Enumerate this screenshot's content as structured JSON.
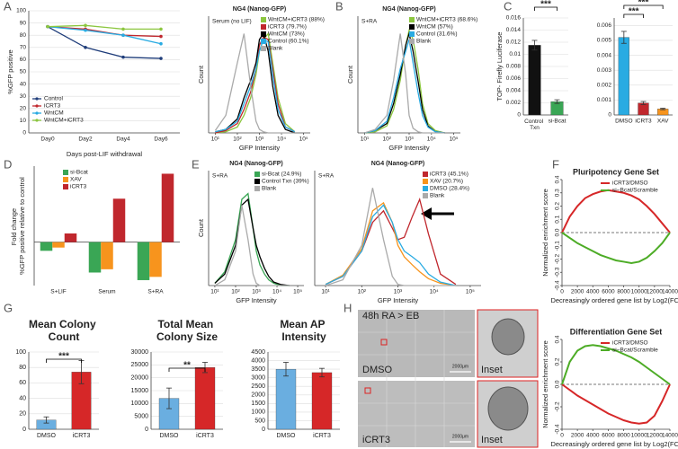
{
  "panel_labels": [
    "A",
    "B",
    "C",
    "D",
    "E",
    "F",
    "G",
    "H"
  ],
  "panel_h": {
    "header": "48h RA > EB",
    "rows": [
      {
        "label": "DMSO",
        "inset": "Inset",
        "scale": "2000μm"
      },
      {
        "label": "iCRT3",
        "inset": "Inset",
        "scale": "2000μm"
      }
    ]
  },
  "chart_data": [
    {
      "type": "line",
      "xlabel": "Days post-LIF withdrawal",
      "ylabel": "%GFP positive",
      "categories": [
        "Day0",
        "Day2",
        "Day4",
        "Day6"
      ],
      "ylim": [
        0,
        100
      ],
      "yticks": [
        0,
        10,
        20,
        30,
        40,
        50,
        60,
        70,
        80,
        90,
        100
      ],
      "markers": true,
      "series": [
        {
          "name": "Control",
          "color": "#1f3d7a",
          "values": [
            87,
            70,
            62,
            61
          ]
        },
        {
          "name": "iCRT3",
          "color": "#c0272d",
          "values": [
            87,
            85,
            80,
            79
          ]
        },
        {
          "name": "WntCM",
          "color": "#29abe2",
          "values": [
            87,
            84,
            80,
            73
          ]
        },
        {
          "name": "WntCM+iCRT3",
          "color": "#8cc63f",
          "values": [
            87,
            88,
            85,
            85
          ]
        }
      ]
    },
    {
      "type": "line",
      "title": "NG4 (Nanog-GFP)",
      "condition": "Serum (no LIF)",
      "xlabel": "GFP Intensity",
      "ylabel": "Count",
      "xscale": "log",
      "x": [
        10,
        30,
        100,
        200,
        400,
        700,
        1000,
        1500,
        2500,
        4000,
        7000,
        15000,
        40000
      ],
      "xlim": [
        5,
        200000
      ],
      "ylim": [
        0,
        100
      ],
      "xticks": [
        {
          "value": 10,
          "label": "10¹"
        },
        {
          "value": 100,
          "label": "10²"
        },
        {
          "value": 1000,
          "label": "10³"
        },
        {
          "value": 10000,
          "label": "10⁴"
        },
        {
          "value": 100000,
          "label": "10⁵"
        }
      ],
      "series": [
        {
          "name": "WntCM+iCRT3 (88%)",
          "color": "#8cc63f",
          "values": [
            0,
            1,
            5,
            15,
            30,
            50,
            70,
            80,
            85,
            60,
            30,
            8,
            1
          ]
        },
        {
          "name": "iCRT3 (79.7%)",
          "color": "#c0272d",
          "values": [
            0,
            2,
            8,
            20,
            35,
            55,
            75,
            82,
            80,
            55,
            25,
            5,
            1
          ]
        },
        {
          "name": "WntCM (73%)",
          "color": "#000000",
          "values": [
            1,
            3,
            12,
            30,
            45,
            60,
            80,
            85,
            70,
            40,
            15,
            3,
            0
          ]
        },
        {
          "name": "Control (60.1%)",
          "color": "#29abe2",
          "values": [
            1,
            3,
            10,
            25,
            40,
            55,
            70,
            80,
            78,
            50,
            20,
            5,
            1
          ]
        },
        {
          "name": "Blank",
          "color": "#aaaaaa",
          "values": [
            2,
            15,
            60,
            85,
            40,
            10,
            3,
            1,
            0,
            0,
            0,
            0,
            0
          ]
        }
      ]
    },
    {
      "type": "line",
      "title": "NG4 (Nanog-GFP)",
      "condition": "S+RA",
      "xlabel": "GFP Intensity",
      "ylabel": "Count",
      "xscale": "log",
      "x": [
        10,
        30,
        100,
        200,
        400,
        700,
        1000,
        1500,
        2500,
        4000,
        7000,
        15000,
        40000
      ],
      "xlim": [
        5,
        200000
      ],
      "ylim": [
        0,
        100
      ],
      "xticks": [
        {
          "value": 10,
          "label": "10¹"
        },
        {
          "value": 100,
          "label": "10²"
        },
        {
          "value": 1000,
          "label": "10³"
        },
        {
          "value": 10000,
          "label": "10⁴"
        },
        {
          "value": 100000,
          "label": "10⁵"
        }
      ],
      "series": [
        {
          "name": "WntCM+iCRT3 (68.6%)",
          "color": "#8cc63f",
          "values": [
            0,
            1,
            6,
            20,
            45,
            75,
            88,
            80,
            55,
            25,
            8,
            2,
            0
          ]
        },
        {
          "name": "WntCM (57%)",
          "color": "#000000",
          "values": [
            0,
            2,
            8,
            25,
            50,
            75,
            85,
            70,
            45,
            20,
            6,
            1,
            0
          ]
        },
        {
          "name": "Control (31.6%)",
          "color": "#29abe2",
          "values": [
            0,
            2,
            10,
            30,
            55,
            70,
            80,
            60,
            35,
            15,
            5,
            1,
            0
          ]
        },
        {
          "name": "Blank",
          "color": "#aaaaaa",
          "values": [
            0,
            3,
            15,
            45,
            85,
            50,
            15,
            4,
            1,
            0,
            0,
            0,
            0
          ]
        }
      ]
    },
    {
      "type": "bar",
      "ylabel": "TOP- Firefly Luciferase",
      "categories": [
        "Control Txn",
        "si-Bcat"
      ],
      "values": [
        0.0115,
        0.0022
      ],
      "errors": [
        0.0008,
        0.0003
      ],
      "colors": [
        "#111111",
        "#3aa655"
      ],
      "ylim": [
        0,
        0.016
      ],
      "yticks": [
        0,
        0.002,
        0.004,
        0.006,
        0.008,
        0.01,
        0.012,
        0.014,
        0.016
      ],
      "significance": [
        "***"
      ]
    },
    {
      "type": "bar",
      "categories": [
        "DMSO",
        "iCRT3",
        "XAV"
      ],
      "values": [
        0.0052,
        0.0008,
        0.0004
      ],
      "errors": [
        0.0004,
        0.0001,
        5e-05
      ],
      "colors": [
        "#29abe2",
        "#c0272d",
        "#f7941d"
      ],
      "ylim": [
        0,
        0.0065
      ],
      "yticks": [
        0,
        0.001,
        0.002,
        0.003,
        0.004,
        0.005,
        0.006
      ],
      "significance": [
        "***",
        "***"
      ]
    },
    {
      "type": "bar",
      "ylabel": "Fold change %GFP positive relative to control",
      "categories": [
        "S+LIF",
        "Serum",
        "S+RA"
      ],
      "ylim": [
        -40,
        70
      ],
      "series": [
        {
          "name": "si-Bcat",
          "color": "#3aa655",
          "values": [
            -8,
            -28,
            -35
          ]
        },
        {
          "name": "XAV",
          "color": "#f7941d",
          "values": [
            -5,
            -25,
            -32
          ]
        },
        {
          "name": "iCRT3",
          "color": "#c0272d",
          "values": [
            8,
            40,
            63
          ]
        }
      ]
    },
    {
      "type": "line",
      "title": "NG4 (Nanog-GFP)",
      "condition": "S+RA",
      "xlabel": "GFP Intensity",
      "ylabel": "Count",
      "xscale": "log",
      "x": [
        10,
        30,
        100,
        200,
        400,
        700,
        1000,
        1500,
        2500,
        4000,
        7000,
        15000,
        40000
      ],
      "xlim": [
        5,
        200000
      ],
      "ylim": [
        0,
        100
      ],
      "xticks": [
        {
          "value": 10,
          "label": "10¹"
        },
        {
          "value": 100,
          "label": "10²"
        },
        {
          "value": 1000,
          "label": "10³"
        },
        {
          "value": 10000,
          "label": "10⁴"
        },
        {
          "value": 100000,
          "label": "10⁵"
        }
      ],
      "series": [
        {
          "name": "si-Bcat (24.9%)",
          "color": "#3aa655",
          "values": [
            2,
            12,
            40,
            75,
            80,
            50,
            30,
            18,
            10,
            5,
            2,
            0,
            0
          ]
        },
        {
          "name": "Control Txn (39%)",
          "color": "#000000",
          "values": [
            2,
            10,
            35,
            70,
            75,
            50,
            35,
            25,
            15,
            8,
            3,
            1,
            0
          ]
        },
        {
          "name": "Blank",
          "color": "#aaaaaa",
          "values": [
            0,
            5,
            30,
            70,
            40,
            10,
            2,
            0,
            0,
            0,
            0,
            0,
            0
          ]
        }
      ]
    },
    {
      "type": "line",
      "title": "NG4 (Nanog-GFP)",
      "condition": "S+RA",
      "xlabel": "GFP Intensity",
      "xscale": "log",
      "x": [
        10,
        30,
        100,
        200,
        400,
        700,
        1000,
        1500,
        2500,
        4000,
        7000,
        15000,
        40000
      ],
      "xlim": [
        5,
        200000
      ],
      "ylim": [
        0,
        100
      ],
      "xticks": [
        {
          "value": 10,
          "label": "10¹"
        },
        {
          "value": 100,
          "label": "10²"
        },
        {
          "value": 1000,
          "label": "10³"
        },
        {
          "value": 10000,
          "label": "10⁴"
        },
        {
          "value": 100000,
          "label": "10⁵"
        }
      ],
      "series": [
        {
          "name": "iCRT3 (45.1%)",
          "color": "#c0272d",
          "values": [
            1,
            8,
            30,
            55,
            65,
            50,
            40,
            42,
            60,
            75,
            45,
            10,
            1
          ]
        },
        {
          "name": "XAV (20.7%)",
          "color": "#f7941d",
          "values": [
            1,
            9,
            32,
            65,
            72,
            55,
            35,
            25,
            18,
            12,
            6,
            2,
            0
          ]
        },
        {
          "name": "DMSO (28.4%)",
          "color": "#29abe2",
          "values": [
            1,
            8,
            30,
            60,
            70,
            55,
            40,
            30,
            25,
            20,
            10,
            3,
            0
          ]
        },
        {
          "name": "Blank",
          "color": "#aaaaaa",
          "values": [
            0,
            5,
            35,
            85,
            40,
            8,
            1,
            0,
            0,
            0,
            0,
            0,
            0
          ]
        }
      ]
    },
    {
      "type": "line",
      "title": "Pluripotency Gene Set",
      "xlabel": "Decreasingly ordered gene list by Log2(FC)",
      "ylabel": "Normalized enrichment score",
      "x": [
        0,
        1000,
        2000,
        3000,
        4000,
        5000,
        6000,
        7000,
        8000,
        9000,
        10000,
        11000,
        12000,
        13000,
        14000
      ],
      "xlim": [
        0,
        14000
      ],
      "xticks": [
        0,
        2000,
        4000,
        6000,
        8000,
        10000,
        12000,
        14000
      ],
      "ylim": [
        -0.4,
        0.4
      ],
      "yticks": [
        -0.4,
        -0.3,
        -0.2,
        -0.1,
        {
          "value": 0,
          "label": "0.0"
        },
        0.1,
        0.2,
        0.3,
        0.4
      ],
      "series": [
        {
          "name": "iCRT3/DMSO",
          "color": "#d62728",
          "values": [
            0,
            0.12,
            0.2,
            0.26,
            0.29,
            0.31,
            0.32,
            0.31,
            0.3,
            0.28,
            0.25,
            0.2,
            0.14,
            0.07,
            0
          ]
        },
        {
          "name": "si−Bcat/Scramble",
          "color": "#4dac26",
          "values": [
            0,
            -0.04,
            -0.08,
            -0.11,
            -0.14,
            -0.17,
            -0.19,
            -0.21,
            -0.22,
            -0.23,
            -0.22,
            -0.19,
            -0.14,
            -0.08,
            0
          ]
        }
      ]
    },
    {
      "type": "line",
      "title": "Differentiation Gene Set",
      "xlabel": "Decreasingly ordered gene list by Log2(FC)",
      "ylabel": "Normalized enrichment score",
      "x": [
        0,
        1000,
        2000,
        3000,
        4000,
        5000,
        6000,
        7000,
        8000,
        9000,
        10000,
        11000,
        12000,
        13000,
        14000
      ],
      "xlim": [
        0,
        14000
      ],
      "xticks": [
        0,
        2000,
        4000,
        6000,
        8000,
        10000,
        12000,
        14000
      ],
      "ylim": [
        -0.4,
        0.4
      ],
      "yticks": [
        -0.4,
        -0.2,
        {
          "value": 0,
          "label": "0.0"
        },
        0.2,
        0.4
      ],
      "series": [
        {
          "name": "iCRT3/DMSO",
          "color": "#d62728",
          "values": [
            0,
            -0.05,
            -0.1,
            -0.14,
            -0.18,
            -0.22,
            -0.26,
            -0.29,
            -0.32,
            -0.34,
            -0.35,
            -0.34,
            -0.28,
            -0.15,
            0
          ]
        },
        {
          "name": "si−Bcat/Scramble",
          "color": "#4dac26",
          "values": [
            0,
            0.2,
            0.3,
            0.34,
            0.35,
            0.34,
            0.32,
            0.3,
            0.27,
            0.24,
            0.2,
            0.15,
            0.1,
            0.05,
            0
          ]
        }
      ]
    },
    {
      "type": "bar",
      "title": "Mean Colony Count",
      "categories": [
        "DMSO",
        "iCRT3"
      ],
      "values": [
        12,
        74
      ],
      "errors": [
        4,
        15
      ],
      "colors": [
        "#6aaee0",
        "#d62728"
      ],
      "ylim": [
        0,
        100
      ],
      "yticks": [
        0,
        20,
        40,
        60,
        80,
        100
      ],
      "significance": [
        "***"
      ]
    },
    {
      "type": "bar",
      "title": "Total Mean Colony Size",
      "categories": [
        "DMSO",
        "iCRT3"
      ],
      "values": [
        12000,
        24000
      ],
      "errors": [
        4000,
        2000
      ],
      "colors": [
        "#6aaee0",
        "#d62728"
      ],
      "ylim": [
        0,
        30000
      ],
      "yticks": [
        0,
        5000,
        10000,
        15000,
        20000,
        25000,
        30000
      ],
      "significance": [
        "**"
      ]
    },
    {
      "type": "bar",
      "title": "Mean AP Intensity",
      "categories": [
        "DMSO",
        "iCRT3"
      ],
      "values": [
        3500,
        3300
      ],
      "errors": [
        400,
        250
      ],
      "colors": [
        "#6aaee0",
        "#d62728"
      ],
      "ylim": [
        0,
        4500
      ],
      "yticks": [
        0,
        500,
        1000,
        1500,
        2000,
        2500,
        3000,
        3500,
        4000,
        4500
      ]
    }
  ]
}
